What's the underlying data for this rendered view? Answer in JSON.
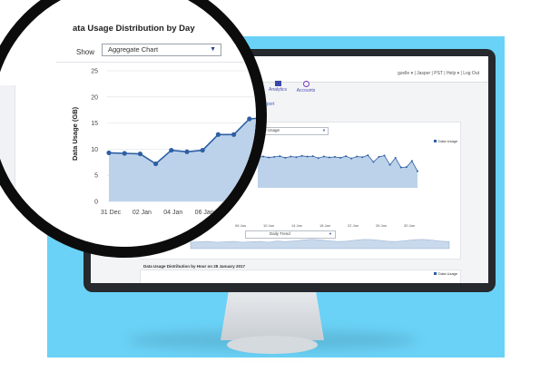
{
  "screen": {
    "nav": {
      "links_text": "gzelle ▾  |  Jasper  |  PST  |  Help ▾  |  Log Out"
    },
    "tabs": [
      {
        "label": "Analytics",
        "active": true
      },
      {
        "label": "Accounts",
        "active": false
      }
    ],
    "link_text": "Export",
    "chart1": {
      "select_value": "Aggregate Usage",
      "legend": "Data Usage",
      "range_select_value": "Daily Trend",
      "xticks": [
        "06 Jan",
        "10 Jan",
        "14 Jan",
        "18 Jan",
        "22 Jan",
        "26 Jan",
        "30 Jan"
      ]
    },
    "chart2": {
      "title": "Data Usage Distribution by Hour on 28 January 2017",
      "legend": "Data Usage"
    }
  },
  "magnifier": {
    "title": "ata Usage Distribution by Day",
    "show_label": "Show",
    "select_value": "Aggregate Chart"
  },
  "chart_data": {
    "type": "area",
    "title": "ata Usage Distribution by Day",
    "xlabel": "",
    "ylabel": "Data Usage (GB)",
    "ylim": [
      0,
      25
    ],
    "yticks": [
      "0",
      "5",
      "10",
      "15",
      "20",
      "25"
    ],
    "xtick_labels": [
      "31 Dec",
      "02 Jan",
      "04 Jan",
      "06 Jan"
    ],
    "series": [
      {
        "name": "Data Usage",
        "color": "#2d5fa3",
        "fill": "#bcd2ea",
        "values": [
          9.3,
          9.2,
          9.1,
          7.2,
          9.8,
          9.5,
          9.8,
          12.8,
          12.8,
          15.8,
          16.0
        ]
      }
    ]
  },
  "colors": {
    "accent": "#2d5fa3",
    "area_fill": "#bcd2ea",
    "background_panel": "#6ad2f6"
  }
}
